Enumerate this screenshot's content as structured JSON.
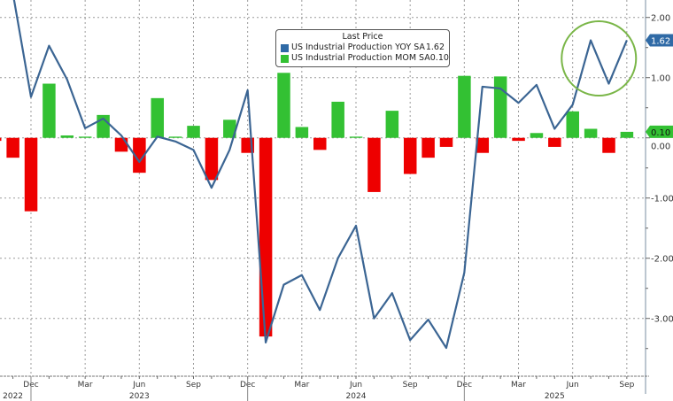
{
  "chart_data": {
    "type": "bar+line",
    "legend": {
      "title": "Last Price",
      "placement": "top-center",
      "entries": [
        {
          "name": "US Industrial Production YOY SA",
          "last": "1.62",
          "color": "#3b6593",
          "type": "line"
        },
        {
          "name": "US Industrial Production MOM SA",
          "last": "0.10",
          "color": "#33c133",
          "type": "bar"
        }
      ]
    },
    "months": [
      "Oct 2022",
      "Nov 2022",
      "Dec 2022",
      "Jan 2023",
      "Feb 2023",
      "Mar 2023",
      "Apr 2023",
      "May 2023",
      "Jun 2023",
      "Jul 2023",
      "Aug 2023",
      "Sep 2023",
      "Oct 2023",
      "Nov 2023",
      "Dec 2023",
      "Jan 2024",
      "Feb 2024",
      "Mar 2024",
      "Apr 2024",
      "May 2024",
      "Jun 2024",
      "Jul 2024",
      "Aug 2024",
      "Sep 2024",
      "Oct 2024",
      "Nov 2024",
      "Dec 2024",
      "Jan 2025",
      "Feb 2025",
      "Mar 2025",
      "Apr 2025",
      "May 2025",
      "Jun 2025",
      "Jul 2025",
      "Aug 2025",
      "Sep 2025"
    ],
    "series": [
      {
        "name": "US Industrial Production YOY SA",
        "type": "line",
        "values": [
          2.9,
          2.4,
          0.68,
          1.53,
          0.97,
          0.16,
          0.32,
          0.04,
          -0.4,
          0.02,
          -0.06,
          -0.2,
          -0.83,
          -0.2,
          0.79,
          -3.4,
          -2.44,
          -2.28,
          -2.86,
          -2.0,
          -1.46,
          -3.0,
          -2.58,
          -3.36,
          -3.02,
          -3.49,
          -2.24,
          0.85,
          0.82,
          0.58,
          0.88,
          0.15,
          0.55,
          1.62,
          0.9,
          1.62
        ]
      },
      {
        "name": "US Industrial Production MOM SA",
        "type": "bar",
        "values": [
          -0.05,
          -0.33,
          -1.22,
          0.9,
          0.04,
          0.02,
          0.38,
          -0.23,
          -0.58,
          0.66,
          0.02,
          0.2,
          -0.7,
          0.3,
          -0.25,
          -3.3,
          1.08,
          0.18,
          -0.2,
          0.6,
          0.02,
          -0.9,
          0.45,
          -0.6,
          -0.33,
          -0.15,
          1.03,
          -0.25,
          1.02,
          -0.05,
          0.08,
          -0.15,
          0.44,
          0.15,
          -0.25,
          0.1
        ]
      }
    ],
    "positive_color": "#33c133",
    "negative_color": "#ee0000",
    "y_axis": {
      "position": "right",
      "ylim": [
        -3.96,
        2.29
      ],
      "ticks": [
        2,
        1,
        0,
        -1,
        -2,
        -3
      ],
      "tick_labels": [
        "2.00",
        "1.00",
        "0.00",
        "-1.00",
        "-2.00",
        "-3.00"
      ]
    },
    "x_axis": {
      "tick_labels": [
        {
          "label": "Dec",
          "month": "Dec 2022"
        },
        {
          "label": "Mar",
          "month": "Mar 2023"
        },
        {
          "label": "Jun",
          "month": "Jun 2023"
        },
        {
          "label": "Sep",
          "month": "Sep 2023"
        },
        {
          "label": "Dec",
          "month": "Dec 2023"
        },
        {
          "label": "Mar",
          "month": "Mar 2024"
        },
        {
          "label": "Jun",
          "month": "Jun 2024"
        },
        {
          "label": "Sep",
          "month": "Sep 2024"
        },
        {
          "label": "Dec",
          "month": "Dec 2024"
        },
        {
          "label": "Mar",
          "month": "Mar 2025"
        },
        {
          "label": "Jun",
          "month": "Jun 2025"
        },
        {
          "label": "Sep",
          "month": "Sep 2025"
        }
      ],
      "year_labels": [
        {
          "label": "2022",
          "month": "Nov 2022"
        },
        {
          "label": "2023",
          "month": "Jun 2023"
        },
        {
          "label": "2024",
          "month": "Jun 2024"
        },
        {
          "label": "2025",
          "month": "May 2025"
        }
      ]
    },
    "grid": true,
    "badges": [
      {
        "label": "1.62",
        "value": 1.62,
        "color": "#2f6aa6"
      },
      {
        "label": "0.10",
        "value": 0.1,
        "color": "#33c133"
      }
    ],
    "annotation": {
      "type": "circle",
      "around": [
        "Jun 2025",
        "Sep 2025"
      ],
      "color": "#7ab648"
    }
  }
}
